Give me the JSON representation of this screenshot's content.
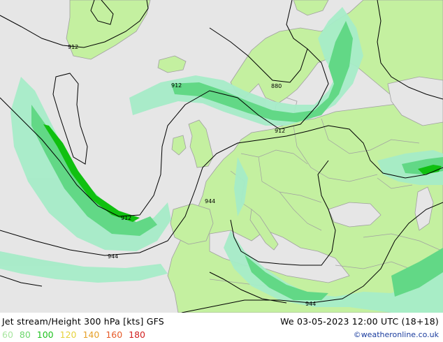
{
  "title": "Jet stream/Height 300 hPa [kts] GFS",
  "valid_time": "We 03-05-2023 12:00 UTC (18+18)",
  "credit": "©weatheronline.co.uk",
  "legend": [
    {
      "label": "60",
      "color": "#a8e6a0"
    },
    {
      "label": "80",
      "color": "#6cd66c"
    },
    {
      "label": "100",
      "color": "#1ec21e"
    },
    {
      "label": "120",
      "color": "#e6d23c"
    },
    {
      "label": "140",
      "color": "#e6a028"
    },
    {
      "label": "160",
      "color": "#e65a28"
    },
    {
      "label": "180",
      "color": "#d21e1e"
    }
  ],
  "contour_labels": [
    "912",
    "912",
    "880",
    "912",
    "912",
    "944",
    "944",
    "944"
  ],
  "colors": {
    "ocean": "#e6e6e6",
    "land": "#c4f0a0",
    "jet_60": "#a6ecc8",
    "jet_80": "#62d886",
    "jet_100": "#10c010",
    "border": "#a0a0a0",
    "contour": "#000000"
  }
}
